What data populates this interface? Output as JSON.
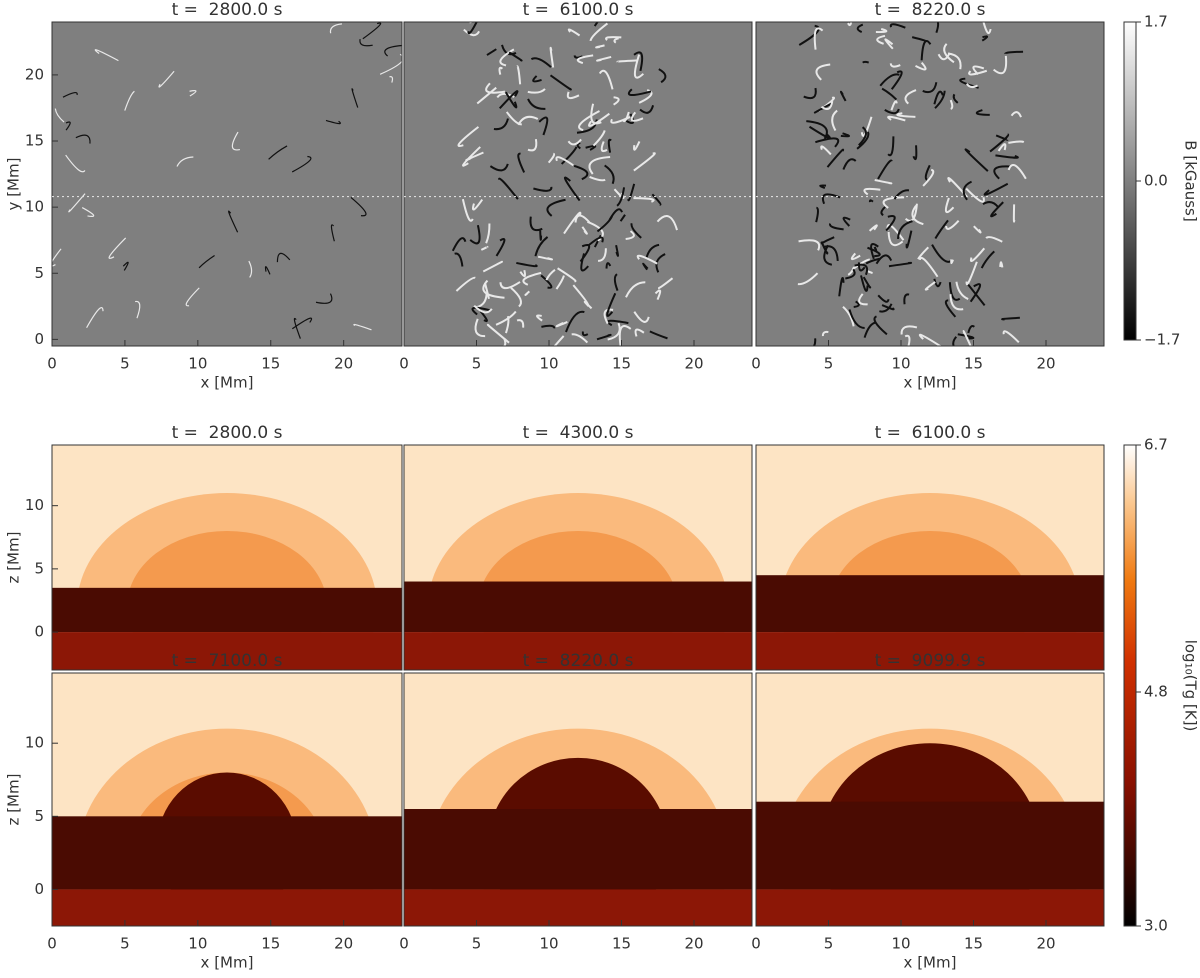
{
  "chart_data": [
    {
      "type": "heatmap",
      "colormap": "gray",
      "title": "t =  2800.0 s",
      "xlabel": "x [Mm]",
      "ylabel": "y [Mm]",
      "xlim": [
        0,
        24
      ],
      "ylim": [
        -0.5,
        24
      ],
      "xticks": [
        0,
        5,
        10,
        15,
        20
      ],
      "yticks": [
        0,
        5,
        10,
        15,
        20
      ],
      "cut_y": 10.8
    },
    {
      "type": "heatmap",
      "colormap": "gray",
      "title": "t =  6100.0 s",
      "xlim": [
        0,
        24
      ],
      "ylim": [
        -0.5,
        24
      ],
      "xticks": [
        0,
        5,
        10,
        15,
        20
      ],
      "cut_y": 10.8
    },
    {
      "type": "heatmap",
      "colormap": "gray",
      "title": "t =  8220.0 s",
      "xlabel": "x [Mm]",
      "xlim": [
        0,
        24
      ],
      "ylim": [
        -0.5,
        24
      ],
      "xticks": [
        0,
        5,
        10,
        15,
        20
      ],
      "cut_y": 10.8
    },
    {
      "type": "heatmap",
      "colormap": "heat",
      "title": "t =  2800.0 s",
      "ylabel": "z [Mm]",
      "xlim": [
        0,
        24
      ],
      "ylim": [
        -3,
        14.8
      ],
      "yticks": [
        0,
        5,
        10
      ]
    },
    {
      "type": "heatmap",
      "colormap": "heat",
      "title": "t =  4300.0 s",
      "xlim": [
        0,
        24
      ],
      "ylim": [
        -3,
        14.8
      ]
    },
    {
      "type": "heatmap",
      "colormap": "heat",
      "title": "t =  6100.0 s",
      "xlim": [
        0,
        24
      ],
      "ylim": [
        -3,
        14.8
      ]
    },
    {
      "type": "heatmap",
      "colormap": "heat",
      "title": "t =  7100.0 s",
      "xlabel": "x [Mm]",
      "ylabel": "z [Mm]",
      "xlim": [
        0,
        24
      ],
      "ylim": [
        -2.5,
        14.8
      ],
      "xticks": [
        0,
        5,
        10,
        15,
        20
      ],
      "yticks": [
        0,
        5,
        10
      ]
    },
    {
      "type": "heatmap",
      "colormap": "heat",
      "title": "t =  8220.0 s",
      "xlim": [
        0,
        24
      ],
      "ylim": [
        -2.5,
        14.8
      ],
      "xticks": [
        0,
        5,
        10,
        15,
        20
      ]
    },
    {
      "type": "heatmap",
      "colormap": "heat",
      "title": "t =  9099.9 s",
      "xlabel": "x [Mm]",
      "xlim": [
        0,
        24
      ],
      "ylim": [
        -2.5,
        14.8
      ],
      "xticks": [
        0,
        5,
        10,
        15,
        20
      ]
    }
  ],
  "colorbars": [
    {
      "colormap": "gray",
      "label": "B [kGauss]",
      "lim": [
        -1.7,
        1.7
      ],
      "ticks": [
        1.7,
        {
          "value": 0,
          "label": "0.0"
        },
        {
          "value": -1.7,
          "label": "−1.7"
        }
      ]
    },
    {
      "colormap": "heat",
      "label": "log₁₀(Tg [K])",
      "lim": [
        3.0,
        6.7
      ],
      "ticks": [
        6.7,
        4.8,
        {
          "value": 3.0,
          "label": "3.0"
        }
      ]
    }
  ]
}
